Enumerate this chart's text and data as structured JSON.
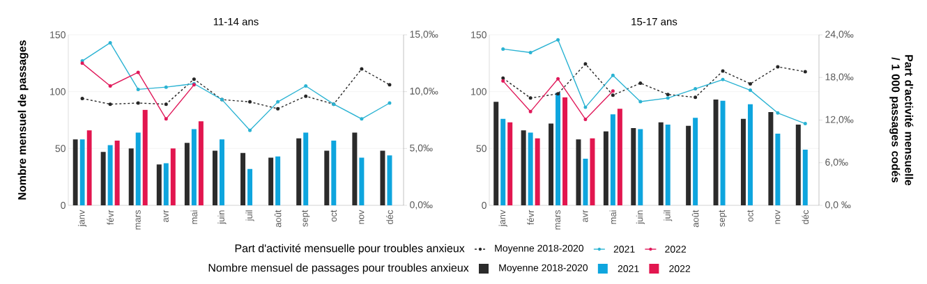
{
  "chart_data": [
    {
      "type": "bar",
      "title": "11-14 ans",
      "ylabel": "Nombre mensuel de passages",
      "categories": [
        "janv",
        "févr",
        "mars",
        "avr",
        "mai",
        "juin",
        "juil",
        "août",
        "sept",
        "oct",
        "nov",
        "déc"
      ],
      "ylim": [
        0,
        150
      ],
      "yticks": [
        0,
        50,
        100,
        150
      ],
      "y2lim": [
        0,
        15
      ],
      "y2ticks": [
        {
          "value": 0,
          "label": "0,0‰"
        },
        {
          "value": 5,
          "label": "5,0‰"
        },
        {
          "value": 10,
          "label": "10,0‰"
        },
        {
          "value": 15,
          "label": "15,0‰"
        }
      ],
      "grid": "y",
      "legend": "bottom",
      "marker": "circle",
      "annotations": [
        "Part d'activité mensuelle pour troubles anxieux",
        "Nombre mensuel de passages pour troubles anxieux"
      ],
      "series": [
        {
          "name": "Moyenne 2018-2020",
          "color": "#2b2b2b",
          "values": [
            58,
            47,
            50,
            36,
            55,
            48,
            46,
            42,
            59,
            48,
            64,
            48
          ]
        },
        {
          "name": "2021",
          "color": "#0ea5de",
          "values": [
            58,
            53,
            64,
            37,
            67,
            58,
            32,
            43,
            64,
            57,
            42,
            44
          ]
        },
        {
          "name": "2022",
          "color": "#e2164f",
          "values": [
            66,
            57,
            84,
            50,
            74,
            null,
            null,
            null,
            null,
            null,
            null,
            null
          ]
        },
        {
          "type": "line",
          "axis": "y2",
          "line_style": "dashed",
          "name": "Moyenne 2018-2020",
          "color": "#262626",
          "values": [
            9.4,
            8.9,
            9.0,
            8.9,
            11.1,
            9.3,
            9.1,
            8.5,
            9.6,
            8.9,
            12.0,
            10.6
          ]
        },
        {
          "type": "line",
          "axis": "y2",
          "line_style": "solid",
          "name": "2021",
          "color": "#2bb3d3",
          "values": [
            12.7,
            14.3,
            10.2,
            10.4,
            10.7,
            9.3,
            6.6,
            9.1,
            10.5,
            8.9,
            7.6,
            9.0
          ]
        },
        {
          "type": "line",
          "axis": "y2",
          "line_style": "solid",
          "name": "2022",
          "color": "#e0195a",
          "values": [
            12.5,
            10.5,
            11.7,
            7.6,
            10.6,
            null,
            null,
            null,
            null,
            null,
            null,
            null
          ]
        }
      ]
    },
    {
      "type": "bar",
      "title": "15-17 ans",
      "y2label": "Part d'activité mensuelle / 1 000 passages codés",
      "categories": [
        "janv",
        "févr",
        "mars",
        "avr",
        "mai",
        "juin",
        "juil",
        "août",
        "sept",
        "oct",
        "nov",
        "déc"
      ],
      "ylim": [
        0,
        150
      ],
      "yticks": [
        0,
        50,
        100,
        150
      ],
      "y2lim": [
        0,
        24
      ],
      "y2ticks": [
        {
          "value": 0,
          "label": "0,0 ‰"
        },
        {
          "value": 6,
          "label": "6,0‰"
        },
        {
          "value": 12,
          "label": "12,0‰"
        },
        {
          "value": 18,
          "label": "18,0‰"
        },
        {
          "value": 24,
          "label": "24,0‰"
        }
      ],
      "grid": "y",
      "marker": "circle",
      "series": [
        {
          "color": "#2b2b2b",
          "values": [
            91,
            66,
            72,
            58,
            65,
            68,
            73,
            70,
            93,
            76,
            82,
            71
          ]
        },
        {
          "color": "#0ea5de",
          "values": [
            76,
            64,
            99,
            41,
            80,
            67,
            71,
            77,
            92,
            89,
            63,
            49
          ]
        },
        {
          "color": "#e2164f",
          "values": [
            73,
            59,
            95,
            59,
            85,
            null,
            null,
            null,
            null,
            null,
            null,
            null
          ]
        },
        {
          "type": "line",
          "axis": "y2",
          "line_style": "dashed",
          "color": "#262626",
          "values": [
            17.9,
            15.1,
            15.7,
            19.9,
            15.5,
            17.2,
            15.6,
            15.2,
            18.9,
            17.1,
            19.5,
            18.8
          ]
        },
        {
          "type": "line",
          "axis": "y2",
          "line_style": "solid",
          "color": "#2bb3d3",
          "values": [
            22.0,
            21.5,
            23.3,
            13.8,
            18.3,
            14.6,
            15.1,
            16.4,
            17.7,
            16.2,
            13.0,
            11.5
          ]
        },
        {
          "type": "line",
          "axis": "y2",
          "line_style": "solid",
          "color": "#e0195a",
          "values": [
            17.5,
            13.2,
            17.8,
            12.1,
            16.1,
            null,
            null,
            null,
            null,
            null,
            null,
            null
          ]
        }
      ]
    }
  ]
}
